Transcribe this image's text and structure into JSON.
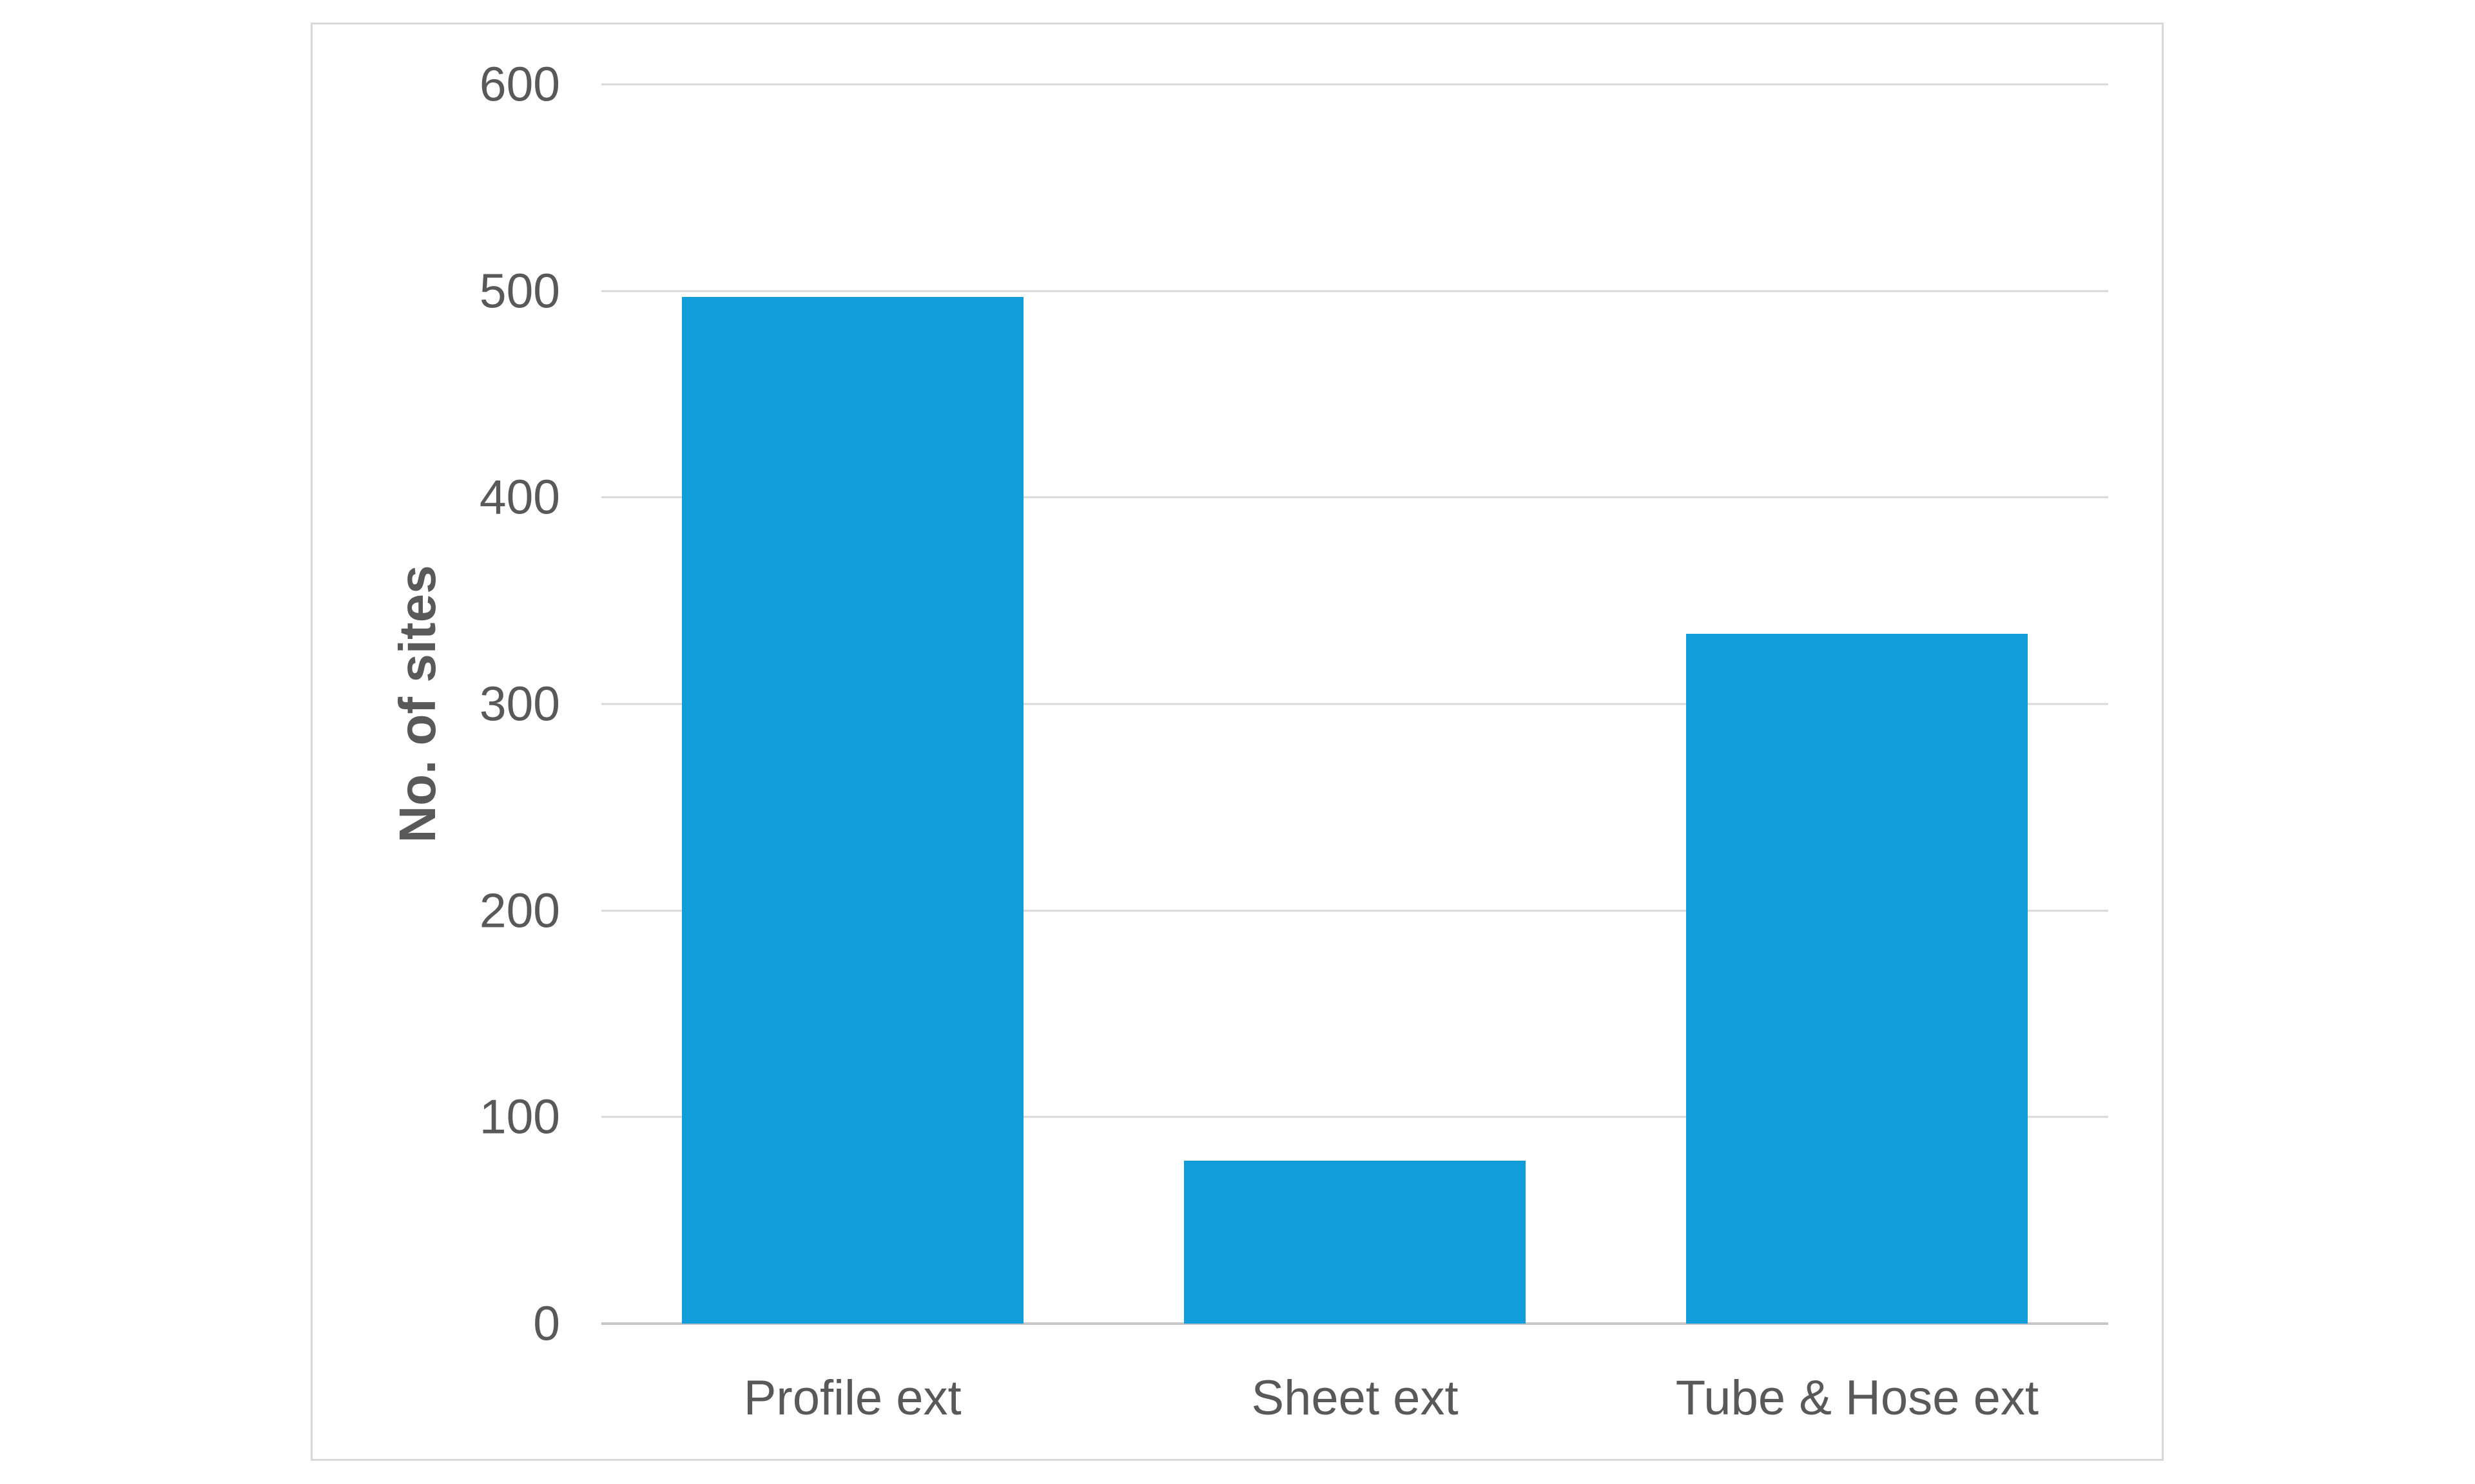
{
  "figure": {
    "background": "#ffffff",
    "border_color": "#d9d9d9"
  },
  "chart_data": {
    "type": "bar",
    "title": "",
    "categories": [
      "Profile ext",
      "Sheet ext",
      "Tube & Hose ext"
    ],
    "values": [
      497,
      79,
      334
    ],
    "xlabel": "",
    "ylabel": "No. of sites",
    "ylim": [
      0,
      600
    ],
    "yticks": [
      0,
      100,
      200,
      300,
      400,
      500,
      600
    ],
    "grid": true,
    "legend_position": "none",
    "bar_color": "#119dd9",
    "gridline_color": "#d9d9d9",
    "axis_line_color": "#c6c6c6",
    "text_color": "#595959",
    "bar_to_category_width_ratio": 0.68
  }
}
